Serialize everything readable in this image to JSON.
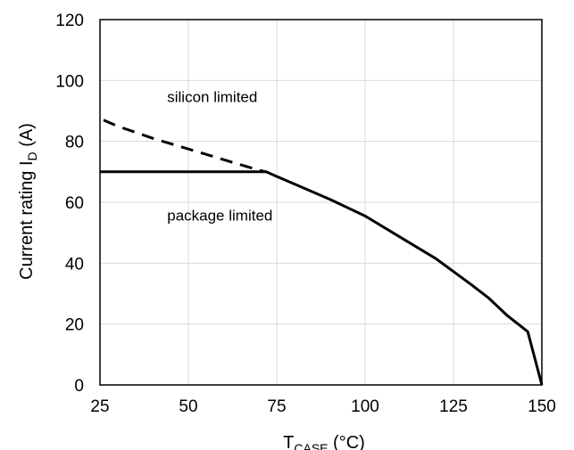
{
  "chart_data": {
    "type": "line",
    "xlabel": {
      "main": "T",
      "sub": "CASE",
      "unit": " (°C)"
    },
    "ylabel": {
      "main": "Current rating I",
      "sub": "D",
      "unit": " (A)"
    },
    "xlim": [
      25,
      150
    ],
    "ylim": [
      0,
      120
    ],
    "xticks": [
      "25",
      "50",
      "75",
      "100",
      "125",
      "150"
    ],
    "yticks": [
      "0",
      "20",
      "40",
      "60",
      "80",
      "100",
      "120"
    ],
    "grid": true,
    "series": [
      {
        "name": "silicon limited",
        "style": "dashed",
        "x": [
          26,
          30,
          40,
          50,
          60,
          70,
          72
        ],
        "y": [
          87,
          85,
          81,
          77.5,
          74,
          70.5,
          70
        ]
      },
      {
        "name": "package limited",
        "style": "solid",
        "x": [
          25,
          70,
          72,
          75,
          80,
          90,
          100,
          110,
          120,
          130,
          135,
          140,
          146,
          150
        ],
        "y": [
          70,
          70,
          70,
          68.5,
          66,
          61,
          55.5,
          48.5,
          41.5,
          33,
          28.5,
          23,
          17.5,
          0
        ]
      }
    ],
    "annotations": [
      {
        "text": "silicon limited",
        "x": 44,
        "y": 93
      },
      {
        "text": "package limited",
        "x": 44,
        "y": 54
      }
    ],
    "colors": {
      "line": "#000000",
      "grid": "#d9d9d9",
      "axis": "#000000"
    }
  }
}
